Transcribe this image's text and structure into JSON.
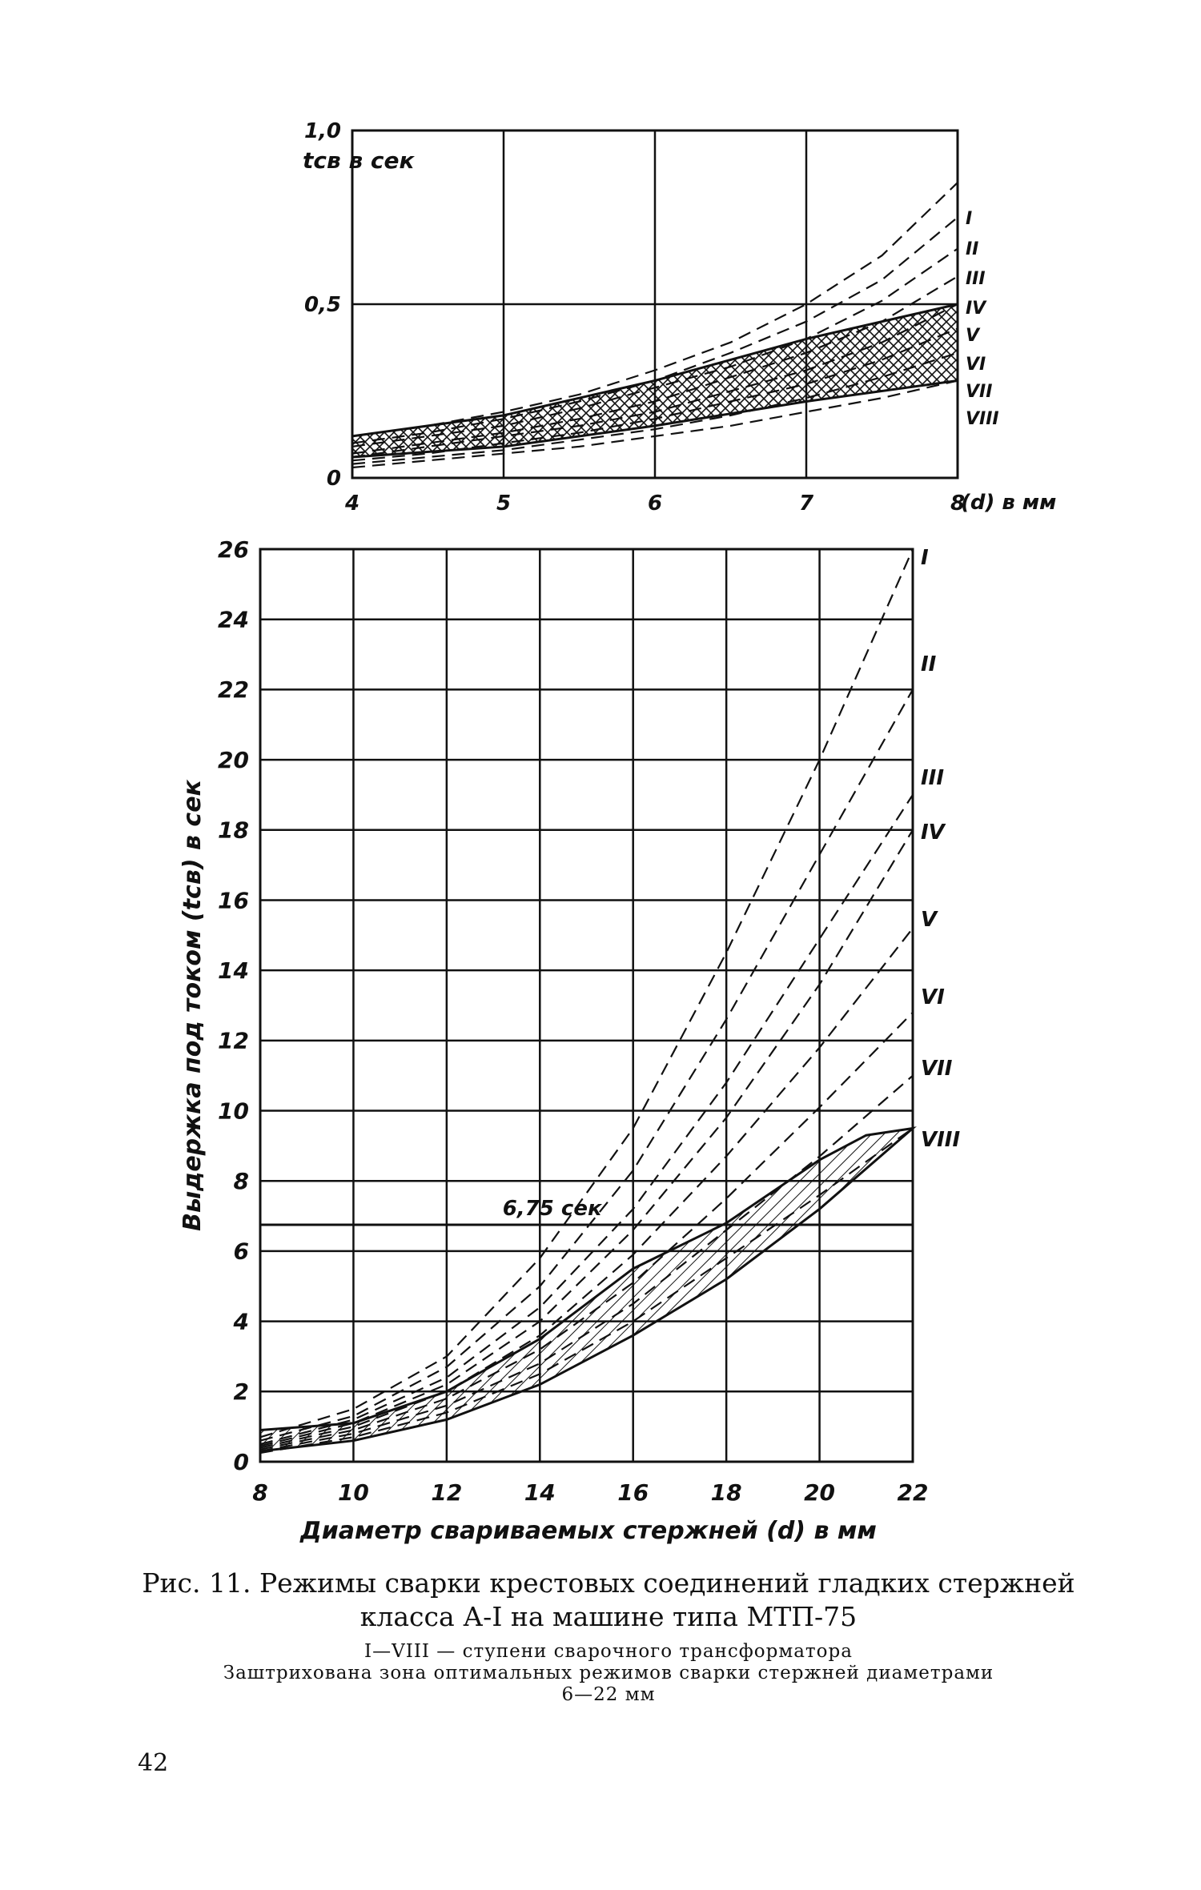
{
  "chart_data": [
    {
      "type": "line",
      "title": "",
      "xlabel": "(d) в мм",
      "ylabel": "tсв в сек",
      "xlim": [
        4,
        8
      ],
      "ylim": [
        0,
        1.0
      ],
      "x_ticks": [
        "4",
        "5",
        "6",
        "7",
        "8"
      ],
      "y_ticks": [
        "0",
        "0,5",
        "1,0"
      ],
      "grid": true,
      "series": [
        {
          "name": "I",
          "x": [
            4,
            4.5,
            5,
            5.5,
            6,
            6.5,
            7,
            7.5,
            8
          ],
          "y": [
            0.12,
            0.15,
            0.19,
            0.24,
            0.31,
            0.39,
            0.5,
            0.64,
            0.85
          ]
        },
        {
          "name": "II",
          "x": [
            4,
            4.5,
            5,
            5.5,
            6,
            6.5,
            7,
            7.5,
            8
          ],
          "y": [
            0.1,
            0.13,
            0.17,
            0.22,
            0.28,
            0.36,
            0.45,
            0.57,
            0.75
          ]
        },
        {
          "name": "III",
          "x": [
            4,
            4.5,
            5,
            5.5,
            6,
            6.5,
            7,
            7.5,
            8
          ],
          "y": [
            0.09,
            0.12,
            0.15,
            0.2,
            0.26,
            0.32,
            0.4,
            0.51,
            0.66
          ]
        },
        {
          "name": "IV",
          "x": [
            4,
            4.5,
            5,
            5.5,
            6,
            6.5,
            7,
            7.5,
            8
          ],
          "y": [
            0.07,
            0.1,
            0.13,
            0.17,
            0.22,
            0.29,
            0.36,
            0.45,
            0.58
          ]
        },
        {
          "name": "V",
          "x": [
            4,
            4.5,
            5,
            5.5,
            6,
            6.5,
            7,
            7.5,
            8
          ],
          "y": [
            0.06,
            0.09,
            0.12,
            0.15,
            0.19,
            0.25,
            0.31,
            0.39,
            0.5
          ]
        },
        {
          "name": "VI",
          "x": [
            4,
            4.5,
            5,
            5.5,
            6,
            6.5,
            7,
            7.5,
            8
          ],
          "y": [
            0.05,
            0.07,
            0.1,
            0.13,
            0.17,
            0.22,
            0.27,
            0.34,
            0.43
          ]
        },
        {
          "name": "VII",
          "x": [
            4,
            4.5,
            5,
            5.5,
            6,
            6.5,
            7,
            7.5,
            8
          ],
          "y": [
            0.04,
            0.06,
            0.08,
            0.11,
            0.14,
            0.18,
            0.23,
            0.29,
            0.36
          ]
        },
        {
          "name": "VIII",
          "x": [
            4,
            4.5,
            5,
            5.5,
            6,
            6.5,
            7,
            7.5,
            8
          ],
          "y": [
            0.03,
            0.05,
            0.07,
            0.09,
            0.12,
            0.15,
            0.19,
            0.23,
            0.28
          ]
        }
      ],
      "optimal_zone": {
        "upper": {
          "x": [
            4,
            5,
            6,
            7,
            8
          ],
          "y": [
            0.12,
            0.18,
            0.28,
            0.4,
            0.5
          ]
        },
        "lower": {
          "x": [
            4,
            5,
            6,
            7,
            8
          ],
          "y": [
            0.06,
            0.09,
            0.15,
            0.22,
            0.28
          ]
        }
      }
    },
    {
      "type": "line",
      "title": "",
      "xlabel": "Диаметр свариваемых стержней (d) в мм",
      "ylabel": "Выдержка под током (tсв) в сек",
      "xlim": [
        8,
        22
      ],
      "ylim": [
        0,
        26
      ],
      "x_ticks": [
        "8",
        "10",
        "12",
        "14",
        "16",
        "18",
        "20",
        "22"
      ],
      "y_ticks": [
        "0",
        "2",
        "4",
        "6",
        "8",
        "10",
        "12",
        "14",
        "16",
        "18",
        "20",
        "22",
        "24",
        "26"
      ],
      "grid": true,
      "series": [
        {
          "name": "I",
          "x": [
            8,
            10,
            12,
            14,
            16,
            18,
            20,
            22
          ],
          "y": [
            0.7,
            1.5,
            3.0,
            5.8,
            9.5,
            14.5,
            20.0,
            26.0
          ]
        },
        {
          "name": "II",
          "x": [
            8,
            10,
            12,
            14,
            16,
            18,
            20,
            22
          ],
          "y": [
            0.6,
            1.3,
            2.7,
            5.0,
            8.3,
            12.6,
            17.3,
            22.0
          ]
        },
        {
          "name": "III",
          "x": [
            8,
            10,
            12,
            14,
            16,
            18,
            20,
            22
          ],
          "y": [
            0.5,
            1.2,
            2.4,
            4.4,
            7.2,
            10.8,
            14.9,
            19.0
          ]
        },
        {
          "name": "IV",
          "x": [
            8,
            10,
            12,
            14,
            16,
            18,
            20,
            22
          ],
          "y": [
            0.45,
            1.1,
            2.2,
            4.0,
            6.6,
            9.8,
            13.6,
            18.0
          ]
        },
        {
          "name": "V",
          "x": [
            8,
            10,
            12,
            14,
            16,
            18,
            20,
            22
          ],
          "y": [
            0.4,
            1.0,
            2.0,
            3.6,
            5.9,
            8.7,
            11.8,
            15.2
          ]
        },
        {
          "name": "VI",
          "x": [
            8,
            10,
            12,
            14,
            16,
            18,
            20,
            22
          ],
          "y": [
            0.35,
            0.9,
            1.8,
            3.2,
            5.1,
            7.5,
            10.1,
            12.8
          ]
        },
        {
          "name": "VII",
          "x": [
            8,
            10,
            12,
            14,
            16,
            18,
            20,
            22
          ],
          "y": [
            0.3,
            0.8,
            1.6,
            2.8,
            4.5,
            6.6,
            8.7,
            11.0
          ]
        },
        {
          "name": "VIII",
          "x": [
            8,
            10,
            12,
            14,
            16,
            18,
            20,
            22
          ],
          "y": [
            0.25,
            0.7,
            1.4,
            2.5,
            4.0,
            5.8,
            7.6,
            9.5
          ]
        }
      ],
      "optimal_zone": {
        "upper": {
          "x": [
            8,
            10,
            12,
            14,
            16,
            18,
            20,
            21,
            22
          ],
          "y": [
            0.9,
            1.1,
            2.0,
            3.5,
            5.5,
            6.8,
            8.6,
            9.3,
            9.5
          ]
        },
        "lower": {
          "x": [
            8,
            10,
            12,
            14,
            16,
            18,
            20,
            22
          ],
          "y": [
            0.3,
            0.6,
            1.2,
            2.2,
            3.6,
            5.2,
            7.2,
            9.5
          ]
        }
      },
      "annotations": [
        {
          "text": "6,75 сек",
          "y": 6.75
        }
      ]
    }
  ],
  "caption": {
    "line1": "Рис. 11. Режимы сварки крестовых соединений гладких стержней",
    "line2": "класса А-I на машине типа МТП-75",
    "legend_line": "I—VIII — ступени сварочного трансформатора",
    "note_line1": "Заштрихована зона оптимальных режимов сварки стержней диаметрами",
    "note_line2": "6—22 мм"
  },
  "page_number": "42"
}
